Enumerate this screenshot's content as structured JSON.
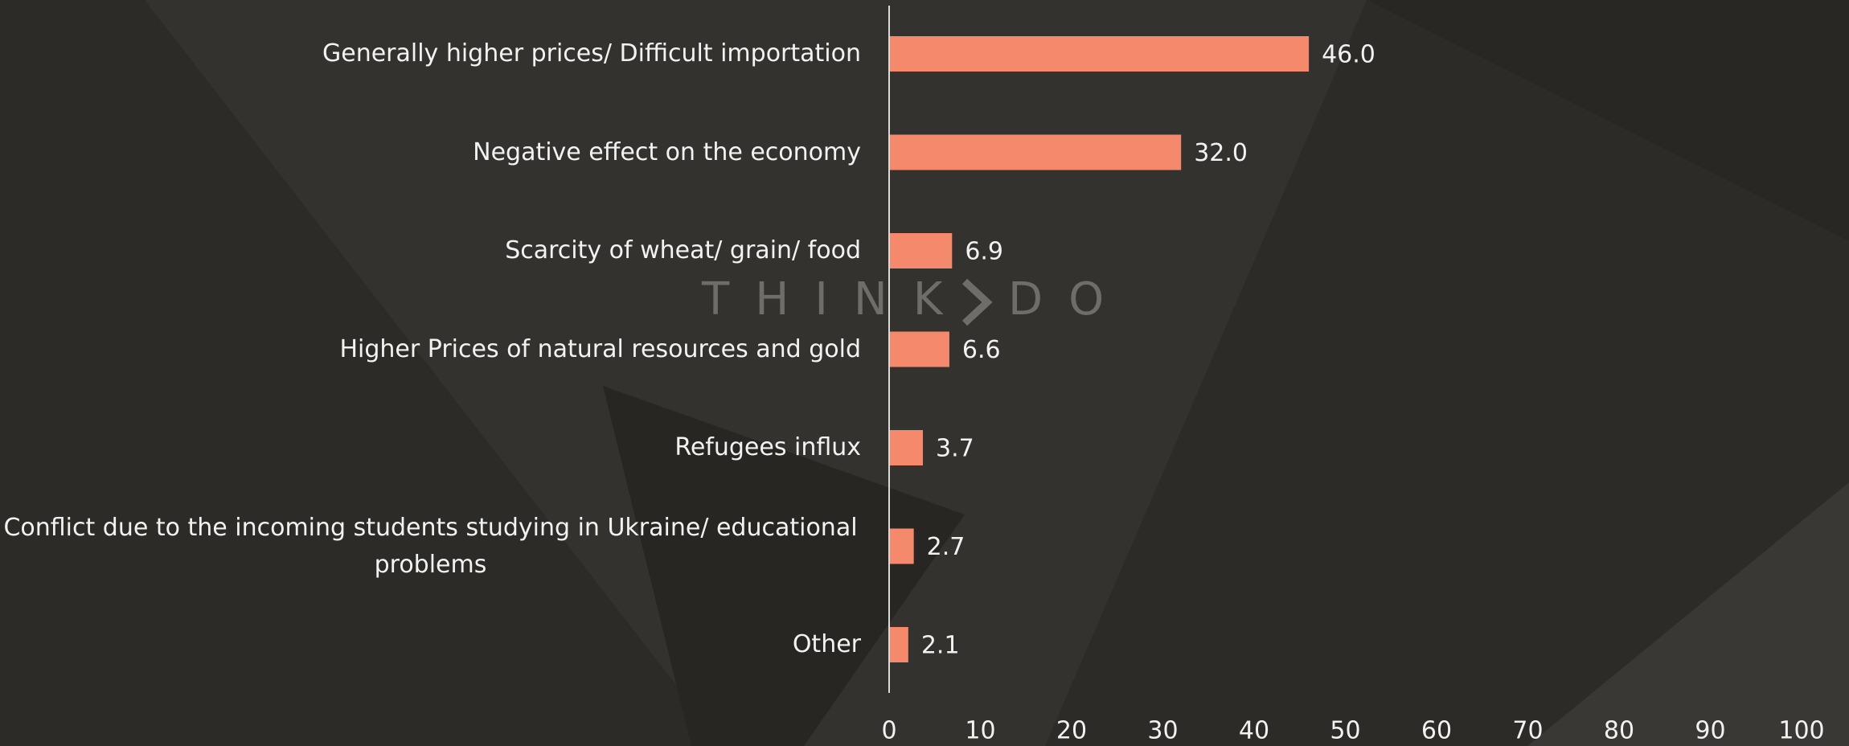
{
  "chart_data": {
    "type": "barh",
    "categories": [
      "Generally higher prices/ Difficult importation",
      "Negative effect on the economy",
      "Scarcity of wheat/ grain/ food",
      "Higher Prices of natural resources and gold",
      "Refugees influx",
      "Conflict due to the incoming students studying in Ukraine/ educational problems",
      "Other"
    ],
    "values": [
      46.0,
      32.0,
      6.9,
      6.6,
      3.7,
      2.7,
      2.1
    ],
    "value_labels": [
      "46.0",
      "32.0",
      "6.9",
      "6.6",
      "3.7",
      "2.7",
      "2.1"
    ],
    "color": "#f4896b",
    "xlim": [
      0,
      100
    ],
    "xticks": [
      0,
      10,
      20,
      30,
      40,
      50,
      60,
      70,
      80,
      90,
      100
    ],
    "grid": false,
    "watermark": [
      "THINK",
      "DO"
    ]
  }
}
